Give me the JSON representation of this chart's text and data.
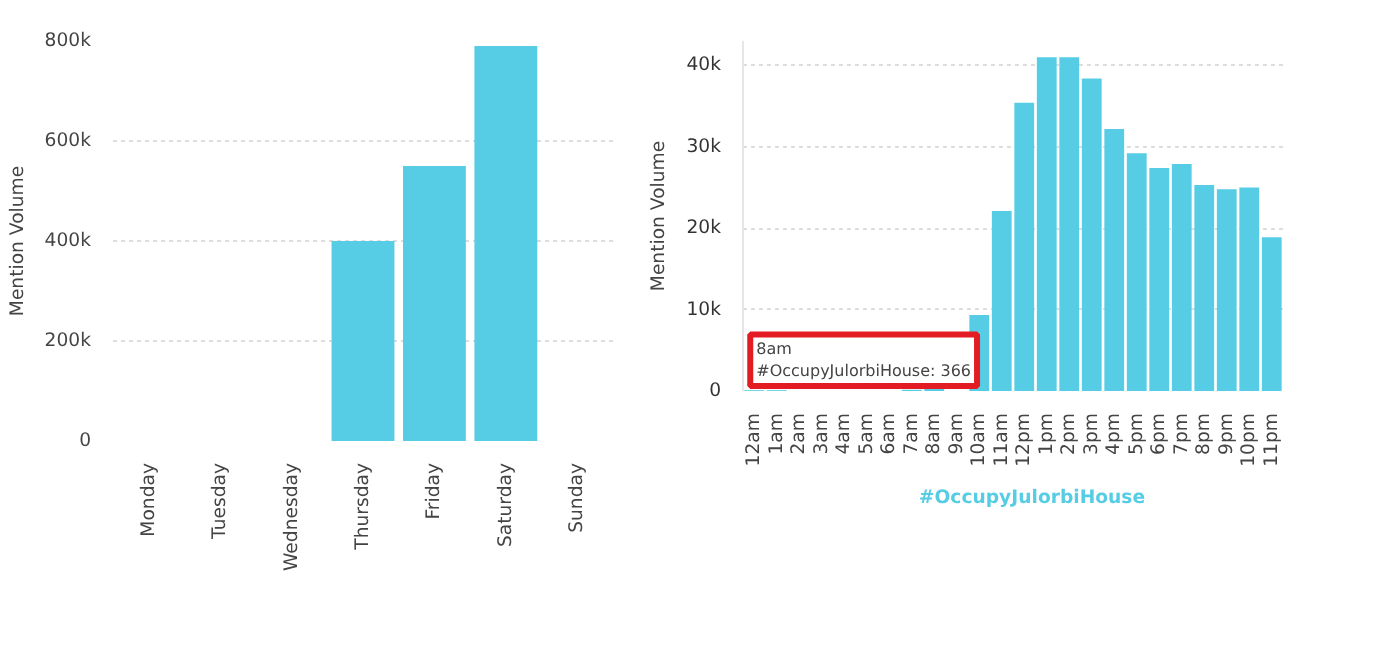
{
  "chart_data": [
    {
      "type": "bar",
      "ylabel": "Mention Volume",
      "categories": [
        "Monday",
        "Tuesday",
        "Wednesday",
        "Thursday",
        "Friday",
        "Saturday",
        "Sunday"
      ],
      "series": [
        {
          "color": "#56cde4",
          "values": [
            0,
            0,
            0,
            400000,
            550000,
            790000,
            0
          ]
        }
      ],
      "ylim": [
        0,
        800000
      ],
      "yticks": [
        0,
        {
          "value": 200000,
          "label": "200k"
        },
        {
          "value": 400000,
          "label": "400k"
        },
        {
          "value": 600000,
          "label": "600k"
        },
        {
          "value": 800000,
          "label": "800k"
        }
      ],
      "grid": "y",
      "legend": false
    },
    {
      "type": "bar",
      "ylabel": "Mention Volume",
      "categories": [
        "12am",
        "1am",
        "2am",
        "3am",
        "4am",
        "5am",
        "6am",
        "7am",
        "8am",
        "9am",
        "10am",
        "11am",
        "12pm",
        "1pm",
        "2pm",
        "3pm",
        "4pm",
        "5pm",
        "6pm",
        "7pm",
        "8pm",
        "9pm",
        "10pm",
        "11pm"
      ],
      "series": [
        {
          "name": "#OccupyJulorbiHouse",
          "color": "#56cde4",
          "values": [
            100,
            100,
            0,
            0,
            0,
            0,
            0,
            150,
            366,
            null,
            9350,
            22100,
            35400,
            41000,
            41000,
            38400,
            32200,
            29200,
            27400,
            27900,
            25300,
            24800,
            25000,
            18900
          ]
        }
      ],
      "ylim": [
        0,
        43000
      ],
      "yticks": [
        0,
        {
          "value": 10000,
          "label": "10k"
        },
        {
          "value": 20000,
          "label": "20k"
        },
        {
          "value": 30000,
          "label": "30k"
        },
        {
          "value": 40000,
          "label": "40k"
        }
      ],
      "grid": "y",
      "legend": "bottom",
      "annotations": [
        {
          "text": "8am\n#OccupyJulorbiHouse: 366",
          "x": "8am",
          "y": 366
        }
      ]
    }
  ]
}
